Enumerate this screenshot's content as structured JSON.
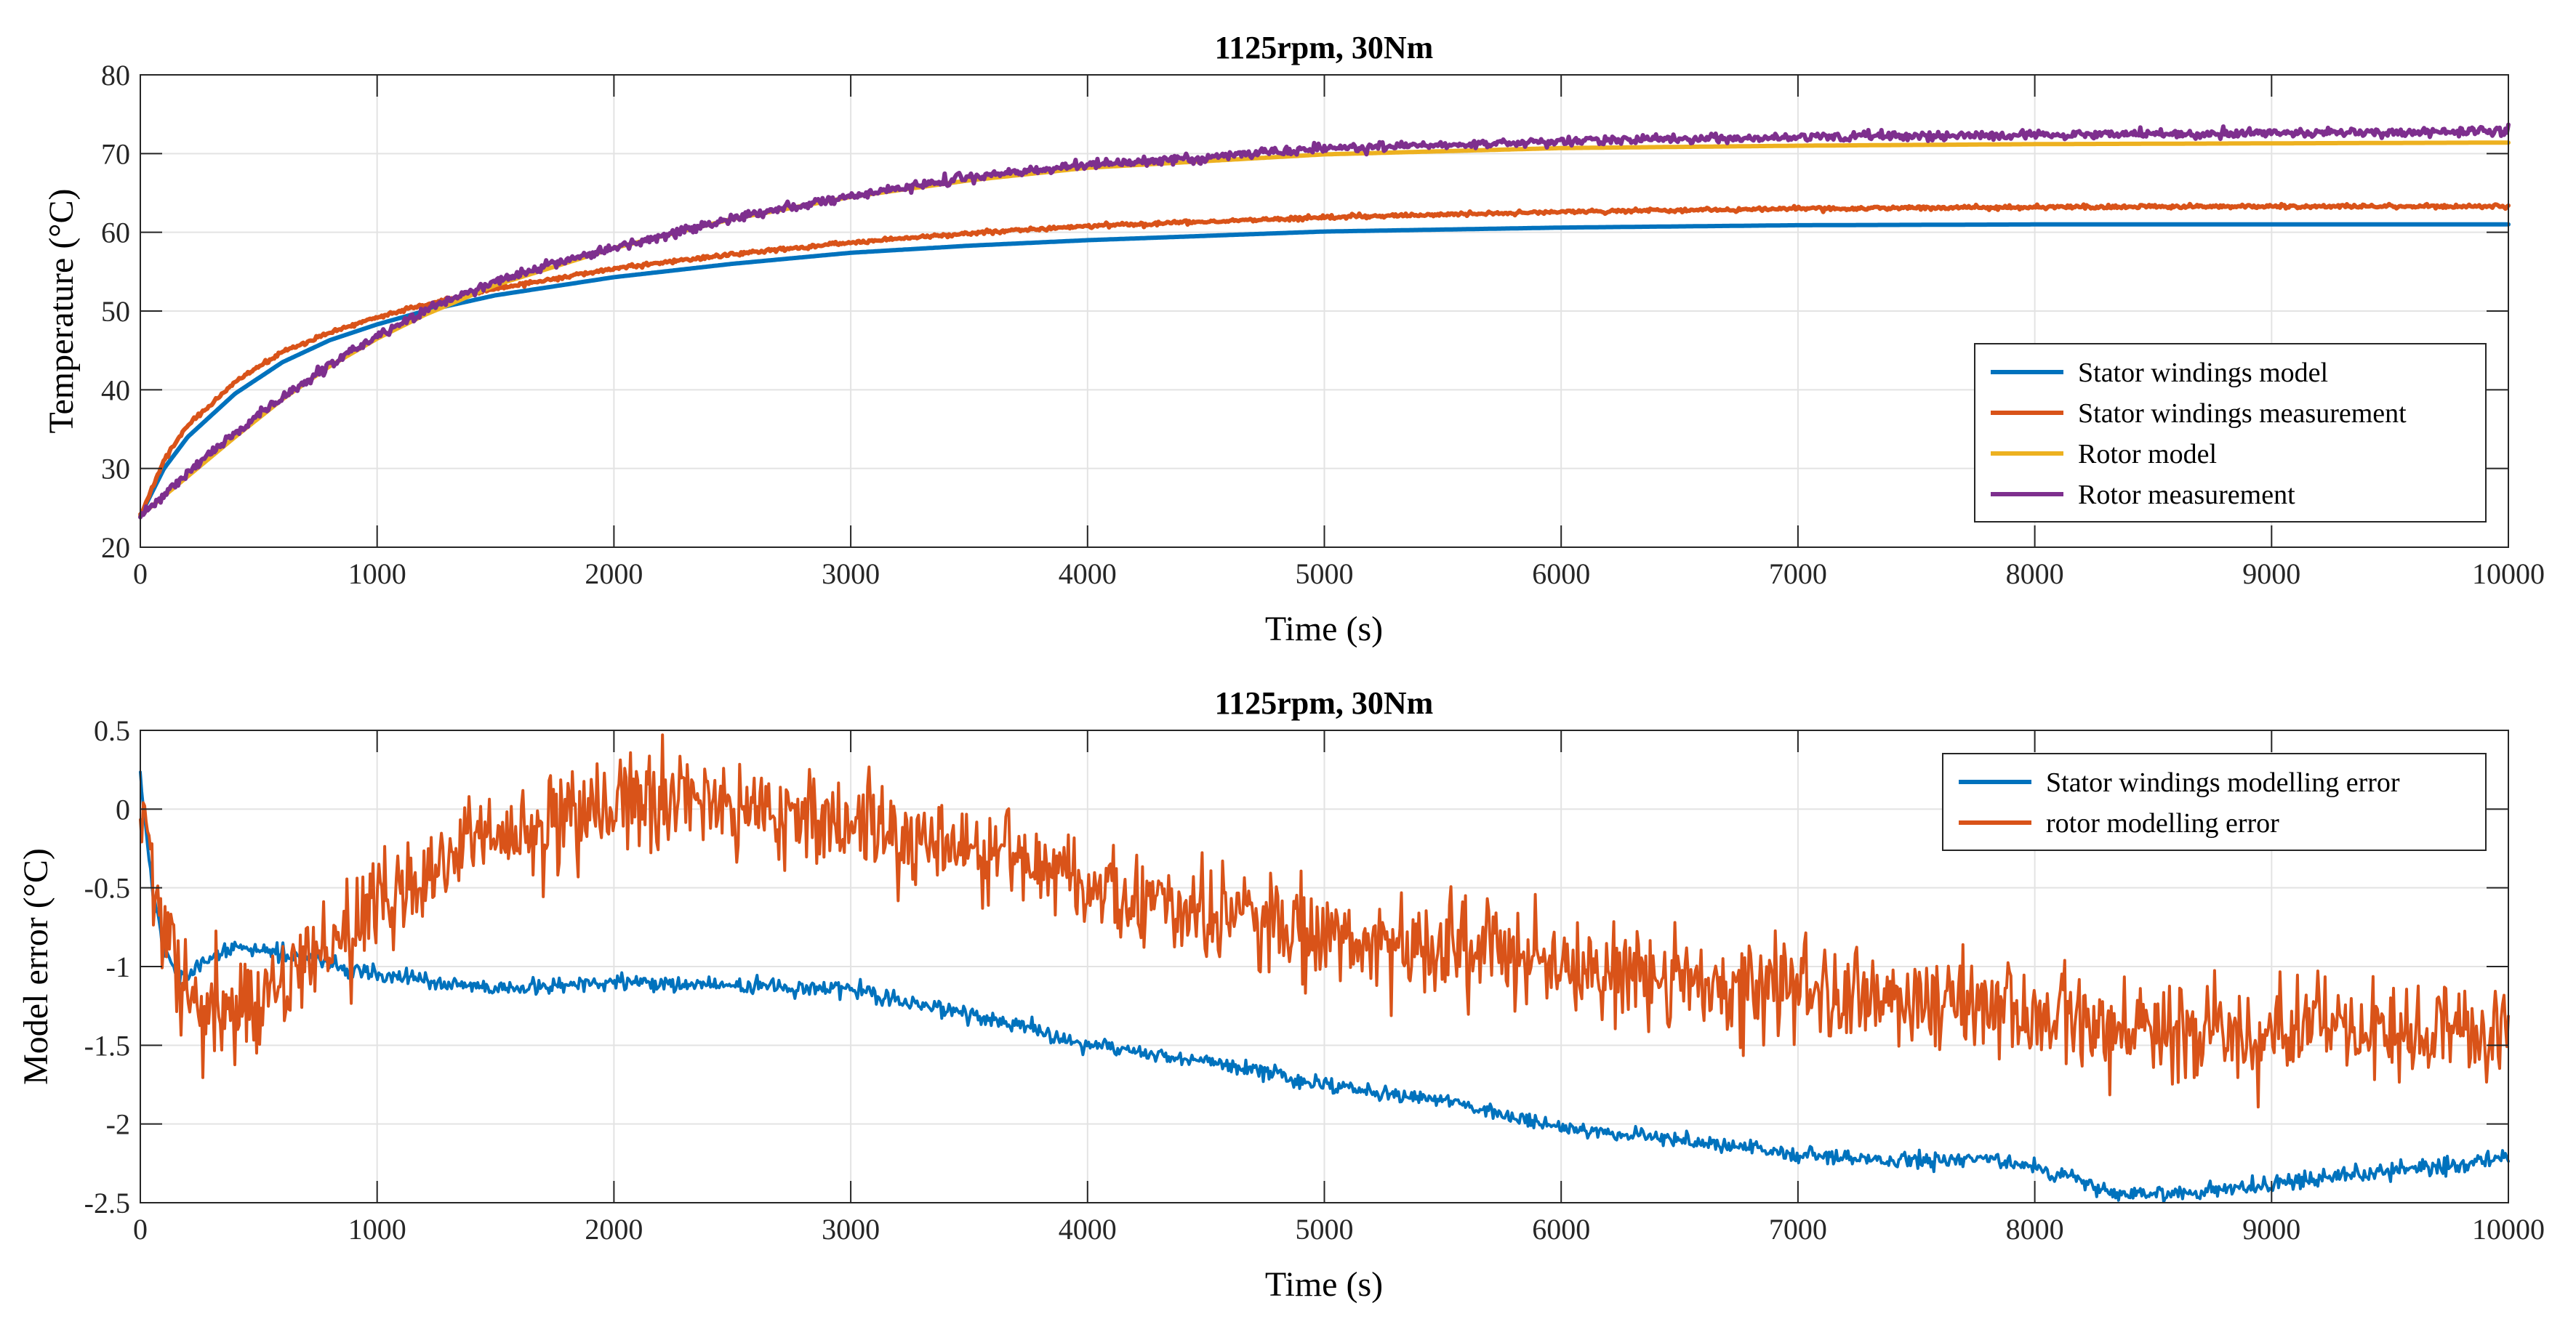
{
  "chart_data": [
    {
      "type": "line",
      "title": "1125rpm, 30Nm",
      "xlabel": "Time (s)",
      "ylabel": "Temperature (°C)",
      "xlim": [
        0,
        10000
      ],
      "ylim": [
        20,
        80
      ],
      "xticks": [
        0,
        1000,
        2000,
        3000,
        4000,
        5000,
        6000,
        7000,
        8000,
        9000,
        10000
      ],
      "yticks": [
        20,
        30,
        40,
        50,
        60,
        70,
        80
      ],
      "grid": true,
      "legend_position": "right",
      "series": [
        {
          "name": "Stator windings model",
          "color": "#0072BD",
          "noise": 0,
          "x": [
            0,
            100,
            200,
            400,
            600,
            800,
            1000,
            1200,
            1500,
            2000,
            2500,
            3000,
            3500,
            4000,
            5000,
            6000,
            7000,
            8000,
            9000,
            10000
          ],
          "y": [
            24,
            30,
            34,
            39.5,
            43.5,
            46.3,
            48.3,
            50,
            52,
            54.3,
            56,
            57.4,
            58.3,
            59,
            60.1,
            60.6,
            60.9,
            61,
            61,
            61
          ]
        },
        {
          "name": "Stator windings measurement",
          "color": "#D95319",
          "noise": 0.12,
          "x": [
            0,
            100,
            200,
            400,
            600,
            800,
            1000,
            1200,
            1500,
            2000,
            2500,
            3000,
            3500,
            4000,
            5000,
            6000,
            7000,
            8000,
            9000,
            10000
          ],
          "y": [
            24,
            31,
            35.5,
            41,
            44.8,
            47.3,
            49.2,
            50.8,
            52.8,
            55.4,
            57.2,
            58.7,
            59.9,
            60.8,
            61.9,
            62.6,
            63,
            63.2,
            63.3,
            63.3
          ]
        },
        {
          "name": "Rotor model",
          "color": "#EDB120",
          "noise": 0,
          "x": [
            0,
            200,
            400,
            600,
            800,
            1000,
            1200,
            1500,
            2000,
            2500,
            3000,
            3500,
            4000,
            5000,
            6000,
            7000,
            8000,
            9000,
            10000
          ],
          "y": [
            24,
            29,
            34,
            38.8,
            43,
            46.5,
            49.5,
            53.3,
            58,
            61.7,
            64.5,
            66.6,
            68.2,
            69.9,
            70.7,
            71,
            71.2,
            71.3,
            71.4
          ]
        },
        {
          "name": "Rotor measurement",
          "color": "#7E2F8E",
          "noise": 0.28,
          "x": [
            0,
            200,
            400,
            600,
            800,
            1000,
            1200,
            1500,
            2000,
            2500,
            3000,
            3500,
            4000,
            5000,
            6000,
            7000,
            8000,
            9000,
            10000
          ],
          "y": [
            24,
            29.5,
            34.5,
            39,
            43.2,
            46.8,
            50,
            53.8,
            58.1,
            61.8,
            64.6,
            66.9,
            68.6,
            70.6,
            71.6,
            72.1,
            72.4,
            72.6,
            72.8
          ]
        }
      ]
    },
    {
      "type": "line",
      "title": "1125rpm, 30Nm",
      "xlabel": "Time (s)",
      "ylabel": "Model error (°C)",
      "xlim": [
        0,
        10000
      ],
      "ylim": [
        -2.5,
        0.5
      ],
      "xticks": [
        0,
        1000,
        2000,
        3000,
        4000,
        5000,
        6000,
        7000,
        8000,
        9000,
        10000
      ],
      "yticks": [
        -2.5,
        -2,
        -1.5,
        -1,
        -0.5,
        0,
        0.5
      ],
      "grid": true,
      "legend_position": "top-right",
      "series": [
        {
          "name": "Stator windings modelling error",
          "color": "#0072BD",
          "noise": 0.025,
          "x": [
            0,
            50,
            100,
            150,
            200,
            300,
            400,
            500,
            700,
            1000,
            1500,
            2000,
            2500,
            3000,
            3500,
            4000,
            4500,
            5000,
            5500,
            6000,
            6500,
            7000,
            7500,
            7800,
            8000,
            8200,
            8300,
            8500,
            8800,
            9000,
            9500,
            10000
          ],
          "y": [
            0.2,
            -0.5,
            -0.9,
            -1.05,
            -1.05,
            -0.95,
            -0.88,
            -0.88,
            -0.95,
            -1.05,
            -1.15,
            -1.1,
            -1.12,
            -1.15,
            -1.3,
            -1.5,
            -1.6,
            -1.75,
            -1.85,
            -2.02,
            -2.1,
            -2.2,
            -2.23,
            -2.22,
            -2.28,
            -2.35,
            -2.42,
            -2.45,
            -2.42,
            -2.38,
            -2.3,
            -2.22
          ]
        },
        {
          "name": "rotor modelling error",
          "color": "#D95319",
          "noise": 0.16,
          "x": [
            0,
            50,
            100,
            200,
            300,
            400,
            500,
            700,
            1000,
            1500,
            2000,
            2500,
            3000,
            3500,
            4000,
            4500,
            5000,
            5500,
            6000,
            6500,
            7000,
            7500,
            8000,
            8500,
            9000,
            9500,
            10000
          ],
          "y": [
            0,
            -0.3,
            -0.9,
            -1.2,
            -1.3,
            -1.3,
            -1.2,
            -1.0,
            -0.6,
            -0.2,
            0.0,
            0.05,
            -0.1,
            -0.25,
            -0.45,
            -0.65,
            -0.8,
            -0.9,
            -1.0,
            -1.1,
            -1.15,
            -1.22,
            -1.32,
            -1.38,
            -1.42,
            -1.42,
            -1.4
          ]
        }
      ]
    }
  ]
}
